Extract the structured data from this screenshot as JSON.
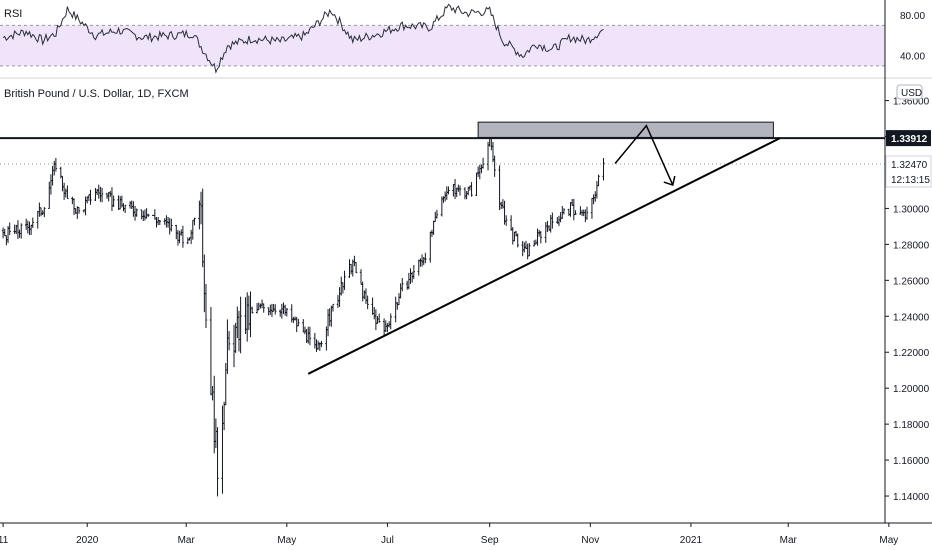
{
  "chart_data": [
    {
      "type": "line",
      "title": "RSI",
      "ylim": [
        20,
        95
      ],
      "reference_levels": [
        70,
        30
      ],
      "ytick_labels": [
        "80.00",
        "40.00"
      ],
      "band_color": "#f0e4fb",
      "line_color": "#2a2e39",
      "x": [
        "2019-11-11",
        "2019-11-25",
        "2019-12-05",
        "2019-12-13",
        "2019-12-20",
        "2020-01-06",
        "2020-01-20",
        "2020-02-04",
        "2020-02-20",
        "2020-03-05",
        "2020-03-12",
        "2020-03-19",
        "2020-03-26",
        "2020-04-10",
        "2020-04-27",
        "2020-05-12",
        "2020-05-28",
        "2020-06-10",
        "2020-06-26",
        "2020-07-10",
        "2020-07-27",
        "2020-08-07",
        "2020-08-18",
        "2020-09-01",
        "2020-09-09",
        "2020-09-21",
        "2020-09-29",
        "2020-10-09",
        "2020-10-20",
        "2020-10-30",
        "2020-11-09"
      ],
      "values": [
        58,
        64,
        55,
        62,
        86,
        60,
        65,
        58,
        60,
        62,
        44,
        27,
        50,
        57,
        54,
        60,
        85,
        55,
        62,
        70,
        68,
        88,
        82,
        84,
        55,
        40,
        52,
        46,
        58,
        55,
        66
      ]
    },
    {
      "type": "candlestick",
      "title": "British Pound / U.S. Dollar, 1D, FXCM",
      "currency": "USD",
      "ylim": [
        1.125,
        1.372
      ],
      "yticks": [
        1.36,
        1.34,
        1.32,
        1.3,
        1.28,
        1.26,
        1.24,
        1.22,
        1.2,
        1.18,
        1.16,
        1.14
      ],
      "ytick_labels": [
        "1.36000",
        "1.34000",
        "1.32000",
        "1.30000",
        "1.28000",
        "1.26000",
        "1.24000",
        "1.22000",
        "1.20000",
        "1.18000",
        "1.16000",
        "1.14000"
      ],
      "xtick_labels": [
        {
          "date": "2019-11-11",
          "label": "11"
        },
        {
          "date": "2020-01-01",
          "label": "2020"
        },
        {
          "date": "2020-03-01",
          "label": "Mar"
        },
        {
          "date": "2020-05-01",
          "label": "May"
        },
        {
          "date": "2020-07-01",
          "label": "Jul"
        },
        {
          "date": "2020-09-01",
          "label": "Sep"
        },
        {
          "date": "2020-11-01",
          "label": "Nov"
        },
        {
          "date": "2021-01-01",
          "label": "2021"
        },
        {
          "date": "2021-03-01",
          "label": "Mar"
        },
        {
          "date": "2021-05-01",
          "label": "May"
        }
      ],
      "price_path": [
        {
          "date": "2019-11-01",
          "price": 1.293
        },
        {
          "date": "2019-11-11",
          "price": 1.285
        },
        {
          "date": "2019-11-25",
          "price": 1.289
        },
        {
          "date": "2019-12-05",
          "price": 1.3
        },
        {
          "date": "2019-12-13",
          "price": 1.325
        },
        {
          "date": "2019-12-20",
          "price": 1.305
        },
        {
          "date": "2019-12-27",
          "price": 1.298
        },
        {
          "date": "2020-01-06",
          "price": 1.31
        },
        {
          "date": "2020-01-20",
          "price": 1.302
        },
        {
          "date": "2020-02-04",
          "price": 1.298
        },
        {
          "date": "2020-02-20",
          "price": 1.29
        },
        {
          "date": "2020-03-02",
          "price": 1.28
        },
        {
          "date": "2020-03-09",
          "price": 1.31
        },
        {
          "date": "2020-03-13",
          "price": 1.24
        },
        {
          "date": "2020-03-20",
          "price": 1.155
        },
        {
          "date": "2020-03-26",
          "price": 1.22
        },
        {
          "date": "2020-04-03",
          "price": 1.235
        },
        {
          "date": "2020-04-15",
          "price": 1.245
        },
        {
          "date": "2020-04-27",
          "price": 1.245
        },
        {
          "date": "2020-05-11",
          "price": 1.232
        },
        {
          "date": "2020-05-19",
          "price": 1.22
        },
        {
          "date": "2020-05-29",
          "price": 1.245
        },
        {
          "date": "2020-06-10",
          "price": 1.27
        },
        {
          "date": "2020-06-19",
          "price": 1.245
        },
        {
          "date": "2020-06-29",
          "price": 1.232
        },
        {
          "date": "2020-07-10",
          "price": 1.255
        },
        {
          "date": "2020-07-24",
          "price": 1.275
        },
        {
          "date": "2020-08-05",
          "price": 1.31
        },
        {
          "date": "2020-08-21",
          "price": 1.31
        },
        {
          "date": "2020-09-01",
          "price": 1.338
        },
        {
          "date": "2020-09-08",
          "price": 1.3
        },
        {
          "date": "2020-09-15",
          "price": 1.285
        },
        {
          "date": "2020-09-23",
          "price": 1.275
        },
        {
          "date": "2020-10-05",
          "price": 1.29
        },
        {
          "date": "2020-10-20",
          "price": 1.3
        },
        {
          "date": "2020-10-30",
          "price": 1.295
        },
        {
          "date": "2020-11-09",
          "price": 1.3247
        }
      ],
      "annotations": {
        "resistance_level": 1.33912,
        "resistance_color": "#131722",
        "supply_zone": {
          "start": "2020-08-25",
          "end": "2021-02-20",
          "top": 1.348,
          "bottom": 1.3395,
          "fill": "#b2b5be"
        },
        "trendline": {
          "start_date": "2020-05-14",
          "start_price": 1.208,
          "end_date": "2021-02-24",
          "end_price": 1.3391
        },
        "projection_arrow": [
          {
            "date": "2020-11-16",
            "price": 1.325
          },
          {
            "date": "2020-12-05",
            "price": 1.346
          },
          {
            "date": "2020-12-21",
            "price": 1.313
          }
        ],
        "last_price": "1.32470",
        "countdown": "12:13:15"
      }
    }
  ],
  "colors": {
    "up": "#131722",
    "down": "#131722",
    "grid": "#f0f3fa",
    "axis": "#131722",
    "hline": "#000000"
  }
}
